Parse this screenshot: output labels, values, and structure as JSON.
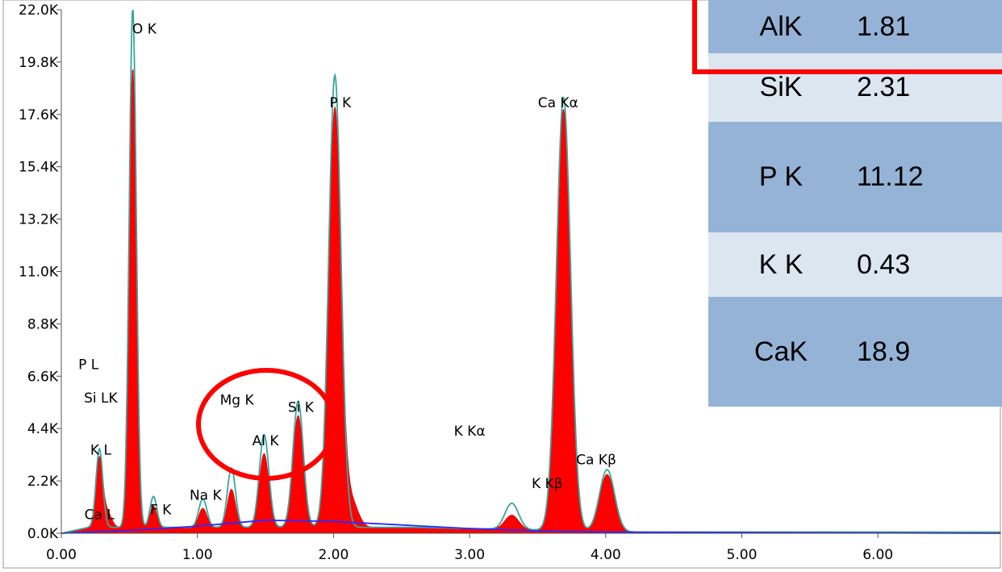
{
  "chart_data": {
    "type": "area",
    "xlim": [
      0.0,
      6.9
    ],
    "ylim": [
      0.0,
      22.0
    ],
    "x_ticks": [
      "0.00",
      "1.00",
      "2.00",
      "3.00",
      "4.00",
      "5.00",
      "6.00"
    ],
    "x_tick_values": [
      0,
      1,
      2,
      3,
      4,
      5,
      6
    ],
    "y_ticks": [
      "0.0K",
      "2.2K",
      "4.4K",
      "6.6K",
      "8.8K",
      "11.0K",
      "13.2K",
      "15.4K",
      "17.6K",
      "19.8K",
      "22.0K"
    ],
    "y_tick_values": [
      0,
      2.2,
      4.4,
      6.6,
      8.8,
      11.0,
      13.2,
      15.4,
      17.6,
      19.8,
      22.0
    ],
    "grid": false,
    "background": 0.25,
    "series": [
      {
        "color": "#ff0000",
        "peaks": [
          {
            "x": 0.28,
            "height": 2.9,
            "width": 0.025
          },
          {
            "x": 0.34,
            "height": 0.6,
            "width": 0.03
          },
          {
            "x": 0.525,
            "height": 19.3,
            "width": 0.026
          },
          {
            "x": 0.677,
            "height": 0.9,
            "width": 0.025
          },
          {
            "x": 1.04,
            "height": 0.8,
            "width": 0.03
          },
          {
            "x": 1.25,
            "height": 1.6,
            "width": 0.03
          },
          {
            "x": 1.49,
            "height": 3.1,
            "width": 0.035
          },
          {
            "x": 1.74,
            "height": 4.7,
            "width": 0.038
          },
          {
            "x": 2.01,
            "height": 17.6,
            "width": 0.045
          },
          {
            "x": 2.13,
            "height": 1.1,
            "width": 0.05
          },
          {
            "x": 3.31,
            "height": 0.6,
            "width": 0.05
          },
          {
            "x": 3.69,
            "height": 17.7,
            "width": 0.052
          },
          {
            "x": 4.01,
            "height": 2.4,
            "width": 0.055
          }
        ]
      },
      {
        "color": "#3aa6a0",
        "peaks": [
          {
            "x": 0.28,
            "height": 3.3,
            "width": 0.025
          },
          {
            "x": 0.525,
            "height": 21.8,
            "width": 0.026
          },
          {
            "x": 0.677,
            "height": 1.3,
            "width": 0.025
          },
          {
            "x": 1.04,
            "height": 1.2,
            "width": 0.03
          },
          {
            "x": 1.25,
            "height": 2.5,
            "width": 0.03
          },
          {
            "x": 1.49,
            "height": 3.9,
            "width": 0.035
          },
          {
            "x": 1.74,
            "height": 5.3,
            "width": 0.038
          },
          {
            "x": 2.01,
            "height": 19.0,
            "width": 0.045
          },
          {
            "x": 3.31,
            "height": 1.1,
            "width": 0.05
          },
          {
            "x": 3.69,
            "height": 18.2,
            "width": 0.052
          },
          {
            "x": 4.01,
            "height": 2.6,
            "width": 0.055
          }
        ]
      },
      {
        "color": "#2a2aff",
        "points": [
          [
            0.0,
            0.0
          ],
          [
            0.2,
            0.05
          ],
          [
            0.6,
            0.15
          ],
          [
            1.0,
            0.3
          ],
          [
            1.5,
            0.55
          ],
          [
            2.0,
            0.5
          ],
          [
            2.5,
            0.35
          ],
          [
            3.0,
            0.2
          ],
          [
            3.5,
            0.1
          ],
          [
            4.0,
            0.05
          ],
          [
            6.9,
            0.0
          ]
        ]
      }
    ],
    "peak_labels": [
      {
        "text": "O  K",
        "x": 0.61,
        "y": 21.0
      },
      {
        "text": "P  K",
        "x": 2.05,
        "y": 17.9
      },
      {
        "text": "Ca Kα",
        "x": 3.65,
        "y": 17.9
      },
      {
        "text": "P  L",
        "x": 0.2,
        "y": 6.9
      },
      {
        "text": "Si LK",
        "x": 0.29,
        "y": 5.5
      },
      {
        "text": "K  L",
        "x": 0.29,
        "y": 3.3
      },
      {
        "text": "Ca L",
        "x": 0.28,
        "y": 0.6
      },
      {
        "text": "F  K",
        "x": 0.73,
        "y": 0.8
      },
      {
        "text": "Na K",
        "x": 1.06,
        "y": 1.4
      },
      {
        "text": "Mg K",
        "x": 1.29,
        "y": 5.4
      },
      {
        "text": "Si K",
        "x": 1.76,
        "y": 5.1
      },
      {
        "text": "Al K",
        "x": 1.5,
        "y": 3.7
      },
      {
        "text": "K  Kα",
        "x": 3.0,
        "y": 4.1
      },
      {
        "text": "K  Kβ",
        "x": 3.57,
        "y": 1.9
      },
      {
        "text": "Ca Kβ",
        "x": 3.93,
        "y": 2.9
      }
    ]
  },
  "table": {
    "rows": [
      {
        "element": "AlK",
        "value": "1.81",
        "bg": "#95b3d7"
      },
      {
        "element": "SiK",
        "value": "2.31",
        "bg": "#dce6f1"
      },
      {
        "element": "P K",
        "value": "11.12",
        "bg": "#95b3d7"
      },
      {
        "element": "K K",
        "value": "0.43",
        "bg": "#dce6f1"
      },
      {
        "element": "CaK",
        "value": "18.9",
        "bg": "#95b3d7"
      }
    ]
  },
  "colors": {
    "highlight": "#ff0000",
    "spectrum_fill": "#ff0000",
    "fit_line": "#3aa6a0",
    "background_line": "#2a2aff"
  }
}
